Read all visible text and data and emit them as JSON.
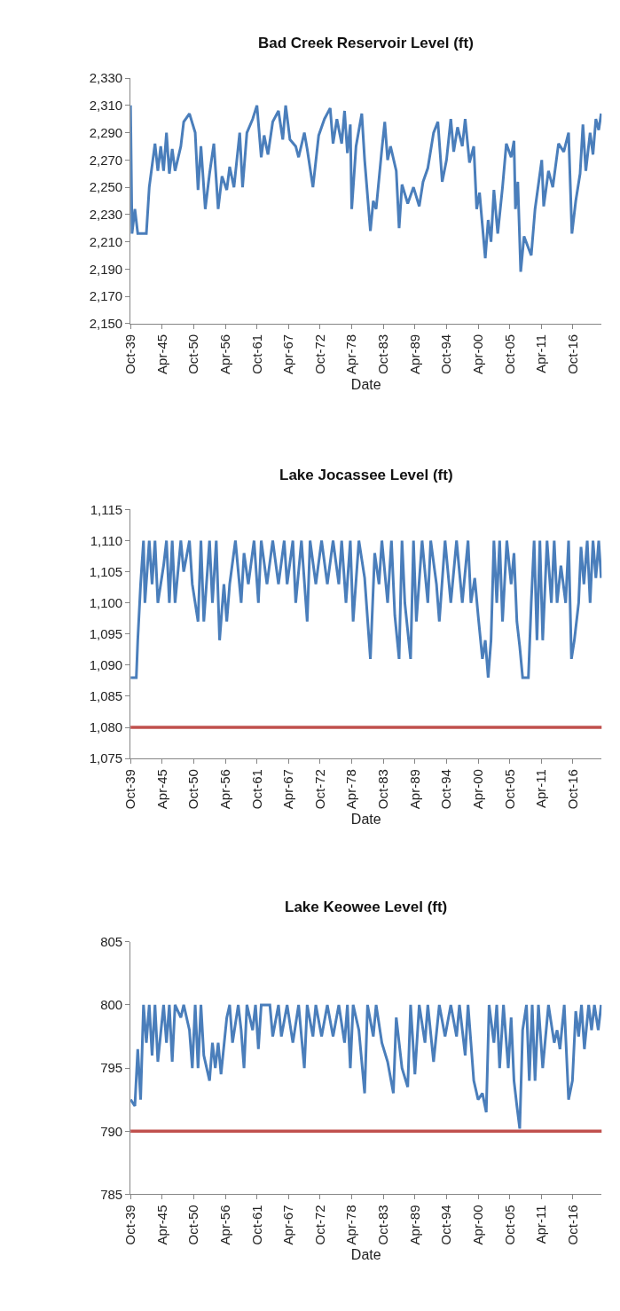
{
  "chart_data": [
    {
      "type": "line",
      "title": "Bad Creek Reservoir Level (ft)",
      "xlabel": "Date",
      "grid": false,
      "marker": "none",
      "line_style": "solid",
      "xlim": [
        "1939-10",
        "2021-10"
      ],
      "xticks": [
        {
          "value": "1939-10",
          "label": "Oct-39"
        },
        {
          "value": "1945-04",
          "label": "Apr-45"
        },
        {
          "value": "1950-10",
          "label": "Oct-50"
        },
        {
          "value": "1956-04",
          "label": "Apr-56"
        },
        {
          "value": "1961-10",
          "label": "Oct-61"
        },
        {
          "value": "1967-04",
          "label": "Apr-67"
        },
        {
          "value": "1972-10",
          "label": "Oct-72"
        },
        {
          "value": "1978-04",
          "label": "Apr-78"
        },
        {
          "value": "1983-10",
          "label": "Oct-83"
        },
        {
          "value": "1989-04",
          "label": "Apr-89"
        },
        {
          "value": "1994-10",
          "label": "Oct-94"
        },
        {
          "value": "2000-04",
          "label": "Apr-00"
        },
        {
          "value": "2005-10",
          "label": "Oct-05"
        },
        {
          "value": "2011-04",
          "label": "Apr-11"
        },
        {
          "value": "2016-10",
          "label": "Oct-16"
        }
      ],
      "ylim": [
        2150,
        2330
      ],
      "yticks": [
        {
          "value": 2150,
          "label": "2,150"
        },
        {
          "value": 2170,
          "label": "2,170"
        },
        {
          "value": 2190,
          "label": "2,190"
        },
        {
          "value": 2210,
          "label": "2,210"
        },
        {
          "value": 2230,
          "label": "2,230"
        },
        {
          "value": 2250,
          "label": "2,250"
        },
        {
          "value": 2270,
          "label": "2,270"
        },
        {
          "value": 2290,
          "label": "2,290"
        },
        {
          "value": 2310,
          "label": "2,310"
        },
        {
          "value": 2330,
          "label": "2,330"
        }
      ],
      "series": [
        {
          "color": "#4a7ebb",
          "x": [
            "1939-10",
            "1940-01",
            "1940-07",
            "1941-01",
            "1942-07",
            "1943-01",
            "1944-01",
            "1944-07",
            "1945-01",
            "1945-07",
            "1946-01",
            "1946-07",
            "1947-01",
            "1947-07",
            "1948-07",
            "1949-01",
            "1950-01",
            "1951-01",
            "1951-07",
            "1952-01",
            "1952-10",
            "1953-07",
            "1954-04",
            "1955-01",
            "1955-09",
            "1956-07",
            "1957-01",
            "1957-10",
            "1958-10",
            "1959-04",
            "1960-01",
            "1961-01",
            "1961-10",
            "1962-07",
            "1963-01",
            "1963-09",
            "1964-07",
            "1965-07",
            "1966-04",
            "1966-10",
            "1967-07",
            "1968-07",
            "1969-01",
            "1970-01",
            "1970-07",
            "1971-07",
            "1972-07",
            "1973-07",
            "1974-07",
            "1975-01",
            "1975-09",
            "1976-07",
            "1977-01",
            "1977-07",
            "1978-01",
            "1978-04",
            "1979-01",
            "1980-01",
            "1980-07",
            "1981-07",
            "1982-01",
            "1982-07",
            "1983-07",
            "1984-01",
            "1984-07",
            "1985-01",
            "1986-01",
            "1986-07",
            "1987-01",
            "1988-01",
            "1989-01",
            "1990-01",
            "1990-09",
            "1991-07",
            "1992-07",
            "1993-04",
            "1994-01",
            "1994-10",
            "1995-07",
            "1996-01",
            "1996-09",
            "1997-07",
            "1998-01",
            "1998-10",
            "1999-07",
            "2000-01",
            "2000-07",
            "2001-07",
            "2002-01",
            "2002-07",
            "2003-01",
            "2003-09",
            "2004-07",
            "2005-03",
            "2006-01",
            "2006-07",
            "2006-10",
            "2007-03",
            "2007-09",
            "2008-04",
            "2009-07",
            "2010-03",
            "2011-05",
            "2011-09",
            "2012-07",
            "2013-04",
            "2014-04",
            "2015-03",
            "2016-01",
            "2016-08",
            "2017-04",
            "2018-01",
            "2018-07",
            "2019-01",
            "2019-10",
            "2020-04",
            "2020-10",
            "2021-04",
            "2021-09"
          ],
          "values": [
            2310,
            2216,
            2234,
            2216,
            2216,
            2250,
            2282,
            2262,
            2280,
            2262,
            2290,
            2260,
            2278,
            2262,
            2280,
            2298,
            2304,
            2290,
            2248,
            2280,
            2234,
            2260,
            2282,
            2234,
            2258,
            2248,
            2265,
            2250,
            2290,
            2250,
            2290,
            2300,
            2310,
            2272,
            2288,
            2274,
            2298,
            2306,
            2285,
            2310,
            2285,
            2280,
            2272,
            2290,
            2278,
            2250,
            2288,
            2300,
            2308,
            2282,
            2300,
            2282,
            2306,
            2275,
            2296,
            2234,
            2280,
            2304,
            2270,
            2218,
            2240,
            2234,
            2278,
            2298,
            2270,
            2280,
            2262,
            2220,
            2252,
            2238,
            2250,
            2236,
            2254,
            2264,
            2290,
            2298,
            2254,
            2270,
            2300,
            2276,
            2294,
            2280,
            2300,
            2268,
            2280,
            2234,
            2246,
            2198,
            2226,
            2210,
            2248,
            2216,
            2250,
            2282,
            2272,
            2284,
            2234,
            2254,
            2188,
            2214,
            2200,
            2234,
            2270,
            2236,
            2262,
            2250,
            2282,
            2276,
            2290,
            2216,
            2240,
            2260,
            2296,
            2262,
            2290,
            2274,
            2300,
            2292,
            2304
          ]
        }
      ]
    },
    {
      "type": "line",
      "title": "Lake Jocassee Level (ft)",
      "xlabel": "Date",
      "grid": false,
      "marker": "none",
      "line_style": "solid",
      "xlim": [
        "1939-10",
        "2021-10"
      ],
      "xticks": [
        {
          "value": "1939-10",
          "label": "Oct-39"
        },
        {
          "value": "1945-04",
          "label": "Apr-45"
        },
        {
          "value": "1950-10",
          "label": "Oct-50"
        },
        {
          "value": "1956-04",
          "label": "Apr-56"
        },
        {
          "value": "1961-10",
          "label": "Oct-61"
        },
        {
          "value": "1967-04",
          "label": "Apr-67"
        },
        {
          "value": "1972-10",
          "label": "Oct-72"
        },
        {
          "value": "1978-04",
          "label": "Apr-78"
        },
        {
          "value": "1983-10",
          "label": "Oct-83"
        },
        {
          "value": "1989-04",
          "label": "Apr-89"
        },
        {
          "value": "1994-10",
          "label": "Oct-94"
        },
        {
          "value": "2000-04",
          "label": "Apr-00"
        },
        {
          "value": "2005-10",
          "label": "Oct-05"
        },
        {
          "value": "2011-04",
          "label": "Apr-11"
        },
        {
          "value": "2016-10",
          "label": "Oct-16"
        }
      ],
      "ylim": [
        1075,
        1115
      ],
      "yticks": [
        {
          "value": 1075,
          "label": "1,075"
        },
        {
          "value": 1080,
          "label": "1,080"
        },
        {
          "value": 1085,
          "label": "1,085"
        },
        {
          "value": 1090,
          "label": "1,090"
        },
        {
          "value": 1095,
          "label": "1,095"
        },
        {
          "value": 1100,
          "label": "1,100"
        },
        {
          "value": 1105,
          "label": "1,105"
        },
        {
          "value": 1110,
          "label": "1,110"
        },
        {
          "value": 1115,
          "label": "1,115"
        }
      ],
      "ref_lines": [
        {
          "axis": "y",
          "value": 1080,
          "color": "#c0504d",
          "line_style": "solid"
        }
      ],
      "series": [
        {
          "color": "#4a7ebb",
          "x": [
            "1939-10",
            "1940-10",
            "1941-01",
            "1941-07",
            "1942-01",
            "1942-04",
            "1943-01",
            "1943-07",
            "1944-01",
            "1944-07",
            "1945-07",
            "1946-01",
            "1946-07",
            "1947-01",
            "1947-07",
            "1948-07",
            "1949-01",
            "1950-01",
            "1950-07",
            "1951-07",
            "1952-01",
            "1952-07",
            "1953-07",
            "1954-01",
            "1954-09",
            "1955-04",
            "1956-01",
            "1956-07",
            "1957-01",
            "1958-01",
            "1959-01",
            "1959-07",
            "1960-04",
            "1961-04",
            "1962-01",
            "1962-07",
            "1963-07",
            "1964-07",
            "1965-07",
            "1966-07",
            "1967-01",
            "1968-01",
            "1968-07",
            "1969-07",
            "1970-07",
            "1971-01",
            "1972-01",
            "1973-01",
            "1974-01",
            "1975-01",
            "1976-01",
            "1976-07",
            "1977-04",
            "1978-01",
            "1978-07",
            "1979-07",
            "1980-07",
            "1981-07",
            "1982-04",
            "1983-01",
            "1983-07",
            "1984-07",
            "1985-03",
            "1985-10",
            "1986-07",
            "1987-01",
            "1987-07",
            "1988-07",
            "1989-01",
            "1989-07",
            "1990-07",
            "1991-07",
            "1992-01",
            "1993-01",
            "1993-07",
            "1994-07",
            "1995-07",
            "1996-07",
            "1997-07",
            "1998-07",
            "1999-01",
            "1999-09",
            "2000-04",
            "2001-01",
            "2001-07",
            "2002-01",
            "2002-07",
            "2003-01",
            "2003-07",
            "2004-01",
            "2004-07",
            "2005-04",
            "2006-01",
            "2006-07",
            "2007-01",
            "2007-07",
            "2008-01",
            "2009-01",
            "2009-07",
            "2010-01",
            "2010-07",
            "2011-01",
            "2011-07",
            "2012-04",
            "2013-01",
            "2013-07",
            "2014-01",
            "2014-09",
            "2015-07",
            "2016-01",
            "2016-07",
            "2017-01",
            "2017-10",
            "2018-03",
            "2018-09",
            "2019-04",
            "2019-10",
            "2020-04",
            "2020-10",
            "2021-04",
            "2021-09"
          ],
          "values": [
            1088,
            1088,
            1094,
            1103,
            1110,
            1100,
            1110,
            1103,
            1110,
            1100,
            1106,
            1110,
            1100,
            1110,
            1100,
            1110,
            1105,
            1110,
            1103,
            1097,
            1110,
            1097,
            1110,
            1100,
            1110,
            1094,
            1103,
            1097,
            1103,
            1110,
            1100,
            1108,
            1103,
            1110,
            1100,
            1110,
            1103,
            1110,
            1103,
            1110,
            1103,
            1110,
            1100,
            1110,
            1097,
            1110,
            1103,
            1110,
            1103,
            1110,
            1103,
            1110,
            1100,
            1110,
            1097,
            1110,
            1104,
            1091,
            1108,
            1103,
            1110,
            1100,
            1110,
            1098,
            1091,
            1110,
            1100,
            1091,
            1110,
            1097,
            1110,
            1100,
            1110,
            1103,
            1097,
            1110,
            1100,
            1110,
            1100,
            1110,
            1100,
            1104,
            1098,
            1091,
            1094,
            1088,
            1094,
            1110,
            1100,
            1110,
            1097,
            1110,
            1103,
            1108,
            1097,
            1093,
            1088,
            1088,
            1100,
            1110,
            1094,
            1110,
            1094,
            1110,
            1100,
            1110,
            1100,
            1106,
            1100,
            1110,
            1091,
            1094,
            1100,
            1109,
            1103,
            1110,
            1100,
            1110,
            1104,
            1110,
            1104
          ]
        }
      ]
    },
    {
      "type": "line",
      "title": "Lake Keowee Level (ft)",
      "xlabel": "Date",
      "grid": false,
      "marker": "none",
      "line_style": "solid",
      "xlim": [
        "1939-10",
        "2021-10"
      ],
      "xticks": [
        {
          "value": "1939-10",
          "label": "Oct-39"
        },
        {
          "value": "1945-04",
          "label": "Apr-45"
        },
        {
          "value": "1950-10",
          "label": "Oct-50"
        },
        {
          "value": "1956-04",
          "label": "Apr-56"
        },
        {
          "value": "1961-10",
          "label": "Oct-61"
        },
        {
          "value": "1967-04",
          "label": "Apr-67"
        },
        {
          "value": "1972-10",
          "label": "Oct-72"
        },
        {
          "value": "1978-04",
          "label": "Apr-78"
        },
        {
          "value": "1983-10",
          "label": "Oct-83"
        },
        {
          "value": "1989-04",
          "label": "Apr-89"
        },
        {
          "value": "1994-10",
          "label": "Oct-94"
        },
        {
          "value": "2000-04",
          "label": "Apr-00"
        },
        {
          "value": "2005-10",
          "label": "Oct-05"
        },
        {
          "value": "2011-04",
          "label": "Apr-11"
        },
        {
          "value": "2016-10",
          "label": "Oct-16"
        }
      ],
      "ylim": [
        785,
        805
      ],
      "yticks": [
        785,
        790,
        795,
        800,
        805
      ],
      "ref_lines": [
        {
          "axis": "y",
          "value": 790,
          "color": "#c0504d",
          "line_style": "solid"
        }
      ],
      "series": [
        {
          "color": "#4a7ebb",
          "x": [
            "1939-10",
            "1940-07",
            "1941-01",
            "1941-07",
            "1942-01",
            "1942-07",
            "1943-01",
            "1943-07",
            "1944-01",
            "1944-07",
            "1945-07",
            "1946-01",
            "1946-07",
            "1947-01",
            "1947-07",
            "1948-07",
            "1949-01",
            "1950-01",
            "1950-07",
            "1951-01",
            "1951-07",
            "1952-01",
            "1952-07",
            "1953-07",
            "1954-01",
            "1954-07",
            "1955-01",
            "1955-07",
            "1956-07",
            "1957-01",
            "1957-07",
            "1958-07",
            "1959-01",
            "1959-07",
            "1960-01",
            "1961-01",
            "1961-07",
            "1962-01",
            "1962-07",
            "1964-01",
            "1964-07",
            "1965-07",
            "1966-01",
            "1967-01",
            "1968-01",
            "1969-01",
            "1970-01",
            "1970-07",
            "1971-07",
            "1972-01",
            "1973-01",
            "1974-01",
            "1975-01",
            "1976-01",
            "1977-01",
            "1977-07",
            "1978-01",
            "1978-07",
            "1979-07",
            "1980-07",
            "1981-01",
            "1982-01",
            "1982-07",
            "1983-07",
            "1984-07",
            "1985-07",
            "1986-01",
            "1987-01",
            "1988-01",
            "1988-07",
            "1989-04",
            "1990-01",
            "1991-01",
            "1991-07",
            "1992-07",
            "1993-07",
            "1994-07",
            "1995-07",
            "1996-07",
            "1997-01",
            "1998-01",
            "1998-07",
            "1999-01",
            "1999-07",
            "2000-04",
            "2001-01",
            "2001-09",
            "2002-03",
            "2003-01",
            "2003-07",
            "2004-01",
            "2004-09",
            "2005-07",
            "2006-01",
            "2006-07",
            "2007-01",
            "2007-07",
            "2008-01",
            "2008-09",
            "2009-03",
            "2009-09",
            "2010-03",
            "2010-10",
            "2011-07",
            "2012-07",
            "2013-07",
            "2014-01",
            "2014-07",
            "2015-04",
            "2016-01",
            "2016-09",
            "2017-04",
            "2017-10",
            "2018-04",
            "2018-10",
            "2019-07",
            "2020-01",
            "2020-07",
            "2021-03",
            "2021-09"
          ],
          "values": [
            792.5,
            792,
            796.5,
            792.5,
            800,
            797,
            800,
            796,
            800,
            795.5,
            800,
            797,
            800,
            795.5,
            800,
            799,
            800,
            798,
            795,
            800,
            795,
            800,
            796,
            794,
            797,
            795,
            797,
            794.5,
            799,
            800,
            797,
            800,
            798,
            795,
            800,
            798,
            800,
            796.5,
            800,
            800,
            797.5,
            800,
            797.5,
            800,
            797,
            800,
            795,
            800,
            797.5,
            800,
            797.5,
            800,
            797.5,
            800,
            797,
            800,
            795,
            800,
            798,
            793,
            800,
            797.5,
            800,
            797,
            795.5,
            793,
            799,
            795,
            793.5,
            800,
            794.5,
            800,
            797,
            800,
            795.5,
            800,
            797.5,
            800,
            797.5,
            800,
            796,
            800,
            797,
            794,
            792.5,
            793,
            791.5,
            800,
            797,
            800,
            795,
            800,
            795,
            799,
            794,
            792,
            790.2,
            798,
            800,
            794,
            800,
            794,
            800,
            795,
            800,
            797,
            798,
            796.5,
            800,
            792.5,
            794,
            799.5,
            797.5,
            800,
            796.5,
            800,
            798,
            800,
            798,
            800
          ]
        }
      ]
    }
  ]
}
